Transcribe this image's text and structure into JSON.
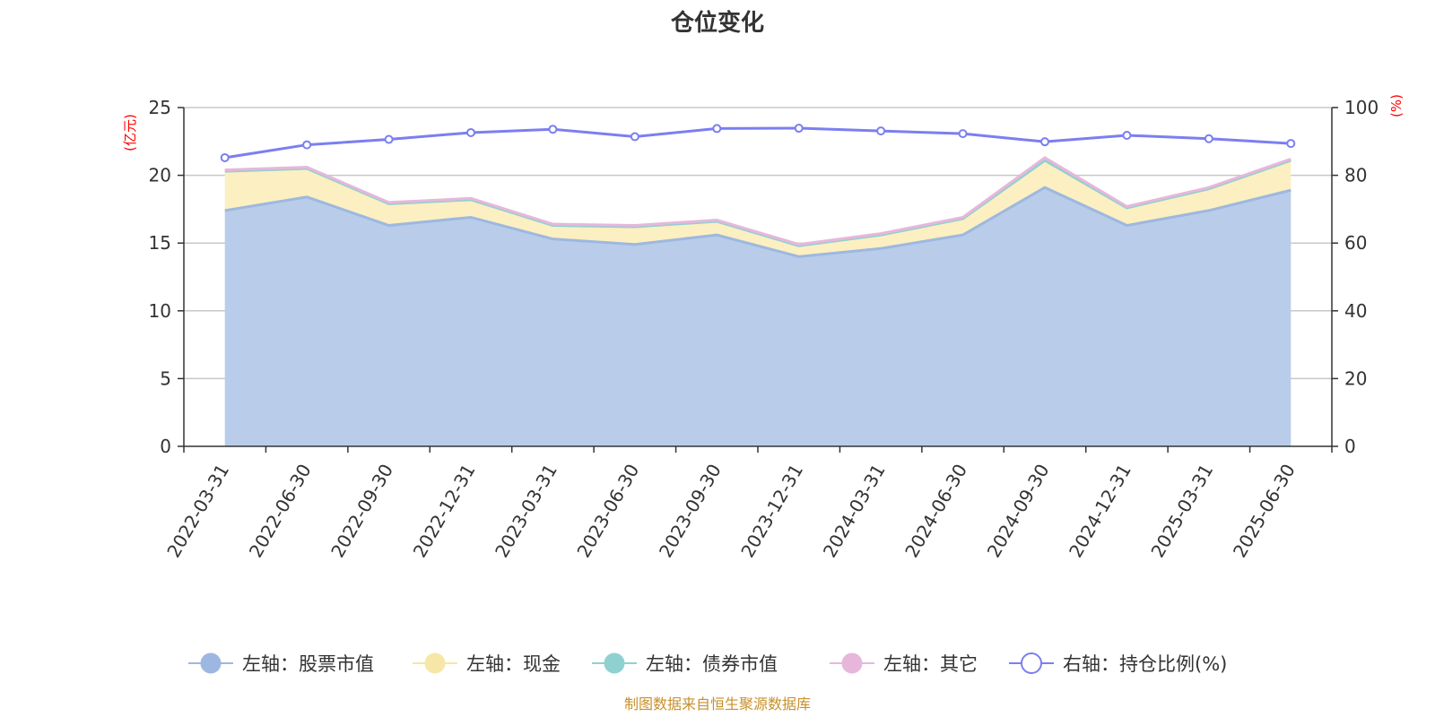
{
  "chart_data": {
    "type": "area",
    "title": "仓位变化",
    "categories": [
      "2022-03-31",
      "2022-06-30",
      "2022-09-30",
      "2022-12-31",
      "2023-03-31",
      "2023-06-30",
      "2023-09-30",
      "2023-12-31",
      "2024-03-31",
      "2024-06-30",
      "2024-09-30",
      "2024-12-31",
      "2025-03-31",
      "2025-06-30"
    ],
    "left_axis": {
      "unit_label": "(亿元)",
      "ylim": [
        0,
        25
      ],
      "ticks": [
        "0",
        "5",
        "10",
        "15",
        "20",
        "25"
      ]
    },
    "right_axis": {
      "unit_label": "(%)",
      "ylim": [
        0,
        100
      ],
      "ticks": [
        "0",
        "20",
        "40",
        "60",
        "80",
        "100"
      ]
    },
    "grid": true,
    "legend_position": "bottom",
    "series": [
      {
        "name": "左轴：股票市值",
        "axis": "left",
        "stack": true,
        "color": "#9db8e0",
        "fill": "#b9cdea",
        "values": [
          17.4,
          18.4,
          16.3,
          16.9,
          15.3,
          14.9,
          15.6,
          14.0,
          14.6,
          15.6,
          19.1,
          16.3,
          17.4,
          18.9
        ]
      },
      {
        "name": "左轴：现金",
        "axis": "left",
        "stack": true,
        "color": "#f7e7a6",
        "fill": "#fcefc2",
        "values": [
          2.9,
          2.1,
          1.6,
          1.3,
          1.0,
          1.3,
          1.0,
          0.8,
          1.0,
          1.2,
          2.0,
          1.3,
          1.6,
          2.2
        ]
      },
      {
        "name": "左轴：债券市值",
        "axis": "left",
        "stack": true,
        "color": "#8fd1d1",
        "fill": "#b5e2e2",
        "values": [
          0,
          0,
          0,
          0,
          0,
          0,
          0,
          0,
          0,
          0,
          0,
          0,
          0,
          0
        ]
      },
      {
        "name": "左轴：其它",
        "axis": "left",
        "stack": true,
        "color": "#e7b7db",
        "fill": "#f1d3ea",
        "values": [
          0.1,
          0.1,
          0.1,
          0.1,
          0.1,
          0.1,
          0.1,
          0.1,
          0.1,
          0.1,
          0.2,
          0.1,
          0.1,
          0.1
        ]
      },
      {
        "name": "右轴：持仓比例(%)",
        "axis": "right",
        "type": "line",
        "color": "#7b7ff0",
        "values": [
          85.2,
          89.0,
          90.6,
          92.6,
          93.6,
          91.4,
          93.8,
          93.9,
          93.1,
          92.3,
          89.9,
          91.8,
          90.8,
          89.4
        ]
      }
    ],
    "source_note": "制图数据来自恒生聚源数据库"
  }
}
